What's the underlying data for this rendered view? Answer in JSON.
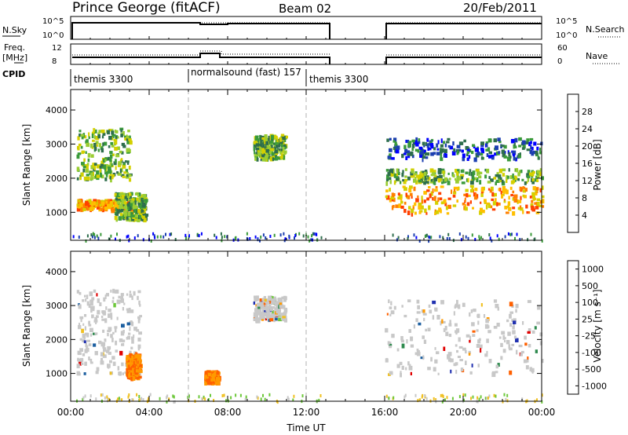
{
  "header": {
    "station": "Prince George (fitACF)",
    "beam": "Beam 02",
    "date": "20/Feb/2011"
  },
  "strip_labels": {
    "nsky": "N.Sky",
    "freq_line1": "Freq.",
    "freq_line2": "[MHz]",
    "cpid": "CPID",
    "nsearch": "N.Search",
    "nave": "Nave"
  },
  "strip_ticks": {
    "nsky_top": "10^5",
    "nsky_bottom": "10^0",
    "freq_top": "12",
    "freq_bottom": "8",
    "nsearch_top": "10^5",
    "nsearch_bottom": "10^0",
    "nave_top": "60",
    "nave_bottom": "0"
  },
  "cpid_labels": [
    {
      "name": "themis 3300",
      "start": 0.0
    },
    {
      "name": "normalsound (fast) 157",
      "start": 6.0
    },
    {
      "name": "themis 3300",
      "start": 12.0
    }
  ],
  "chart_data": [
    {
      "type": "heatmap",
      "title": "Power",
      "xlabel": "Time UT",
      "ylabel": "Slant Range [km]",
      "x_ticks": [
        "00:00",
        "04:00",
        "08:00",
        "12:00",
        "16:00",
        "20:00",
        "00:00"
      ],
      "xlim_hours": [
        0,
        24
      ],
      "ylim_km": [
        180,
        4600
      ],
      "y_ticks": [
        1000,
        2000,
        3000,
        4000
      ],
      "colorbar": {
        "label": "Power [dB]",
        "ticks": [
          "4",
          "8",
          "12",
          "16",
          "20",
          "24",
          "28"
        ],
        "range": [
          0,
          30
        ],
        "colors": [
          "#0000ff",
          "#1c3fb0",
          "#2e6e4c",
          "#3a9a3a",
          "#9acd32",
          "#d4d000",
          "#ffbf00",
          "#ff8000",
          "#ff4000",
          "#e00000"
        ]
      },
      "data_gap_hours": [
        13.1,
        16.0
      ],
      "echo_regions": [
        {
          "t": [
            0.3,
            3.2
          ],
          "r": [
            1100,
            1400
          ],
          "value": "high"
        },
        {
          "t": [
            0.3,
            3.0
          ],
          "r": [
            2000,
            3500
          ],
          "value": "medium"
        },
        {
          "t": [
            2.2,
            3.8
          ],
          "r": [
            800,
            1600
          ],
          "value": "medium"
        },
        {
          "t": [
            9.3,
            10.9
          ],
          "r": [
            2600,
            3300
          ],
          "value": "medium"
        },
        {
          "t": [
            16.0,
            24.0
          ],
          "r": [
            1000,
            1800
          ],
          "value": "high"
        },
        {
          "t": [
            16.0,
            24.0
          ],
          "r": [
            1900,
            2300
          ],
          "value": "medium"
        },
        {
          "t": [
            16.0,
            24.0
          ],
          "r": [
            2600,
            3200
          ],
          "value": "low"
        }
      ]
    },
    {
      "type": "heatmap",
      "title": "Velocity",
      "xlabel": "Time UT",
      "ylabel": "Slant Range [km]",
      "x_ticks": [
        "00:00",
        "04:00",
        "08:00",
        "12:00",
        "16:00",
        "20:00",
        "00:00"
      ],
      "xlim_hours": [
        0,
        24
      ],
      "ylim_km": [
        180,
        4600
      ],
      "y_ticks": [
        1000,
        2000,
        3000,
        4000
      ],
      "colorbar": {
        "label": "Velocity [m s⁻¹]",
        "ticks": [
          "1000",
          "500",
          "100",
          "25",
          "-25",
          "-100",
          "-500",
          "-1000"
        ],
        "colors": [
          "#2030b0",
          "#1c5fa0",
          "#2e8a4e",
          "#6dc83a",
          "#c8c8c8",
          "#f0c020",
          "#ff9a00",
          "#ff6000",
          "#e00000"
        ]
      },
      "data_gap_hours": [
        13.1,
        16.0
      ],
      "echo_regions": [
        {
          "t": [
            0.3,
            3.5
          ],
          "r": [
            1000,
            3500
          ],
          "value": "-25..25"
        },
        {
          "t": [
            2.8,
            3.5
          ],
          "r": [
            900,
            1600
          ],
          "value": "-500..-100"
        },
        {
          "t": [
            6.8,
            7.5
          ],
          "r": [
            750,
            1100
          ],
          "value": "-500..-100"
        },
        {
          "t": [
            9.3,
            10.9
          ],
          "r": [
            2600,
            3300
          ],
          "value": "-25..25"
        },
        {
          "t": [
            16.0,
            24.0
          ],
          "r": [
            1000,
            3200
          ],
          "value": "-25..25"
        }
      ]
    }
  ]
}
